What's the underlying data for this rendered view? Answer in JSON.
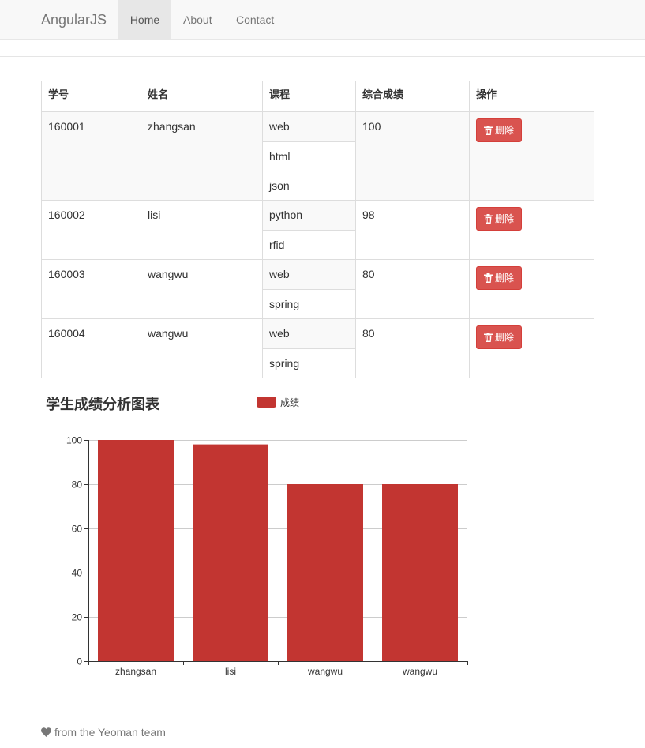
{
  "navbar": {
    "brand": "AngularJS",
    "items": [
      {
        "label": "Home",
        "active": true
      },
      {
        "label": "About",
        "active": false
      },
      {
        "label": "Contact",
        "active": false
      }
    ]
  },
  "table": {
    "headers": [
      "学号",
      "姓名",
      "课程",
      "综合成绩",
      "操作"
    ],
    "delete_label": "删除",
    "rows": [
      {
        "id": "160001",
        "name": "zhangsan",
        "courses": [
          "web",
          "html",
          "json"
        ],
        "score": "100"
      },
      {
        "id": "160002",
        "name": "lisi",
        "courses": [
          "python",
          "rfid"
        ],
        "score": "98"
      },
      {
        "id": "160003",
        "name": "wangwu",
        "courses": [
          "web",
          "spring"
        ],
        "score": "80"
      },
      {
        "id": "160004",
        "name": "wangwu",
        "courses": [
          "web",
          "spring"
        ],
        "score": "80"
      }
    ]
  },
  "chart": {
    "title": "学生成绩分析图表",
    "legend": "成绩"
  },
  "chart_data": {
    "type": "bar",
    "title": "学生成绩分析图表",
    "categories": [
      "zhangsan",
      "lisi",
      "wangwu",
      "wangwu"
    ],
    "series": [
      {
        "name": "成绩",
        "values": [
          100,
          98,
          80,
          80
        ]
      }
    ],
    "yticks": [
      0,
      20,
      40,
      60,
      80,
      100
    ],
    "ylim": [
      0,
      100
    ],
    "grid": true,
    "legend_position": "top",
    "color": "#c23531"
  },
  "footer": {
    "text": "from the Yeoman team",
    "icon": "heart-icon"
  }
}
